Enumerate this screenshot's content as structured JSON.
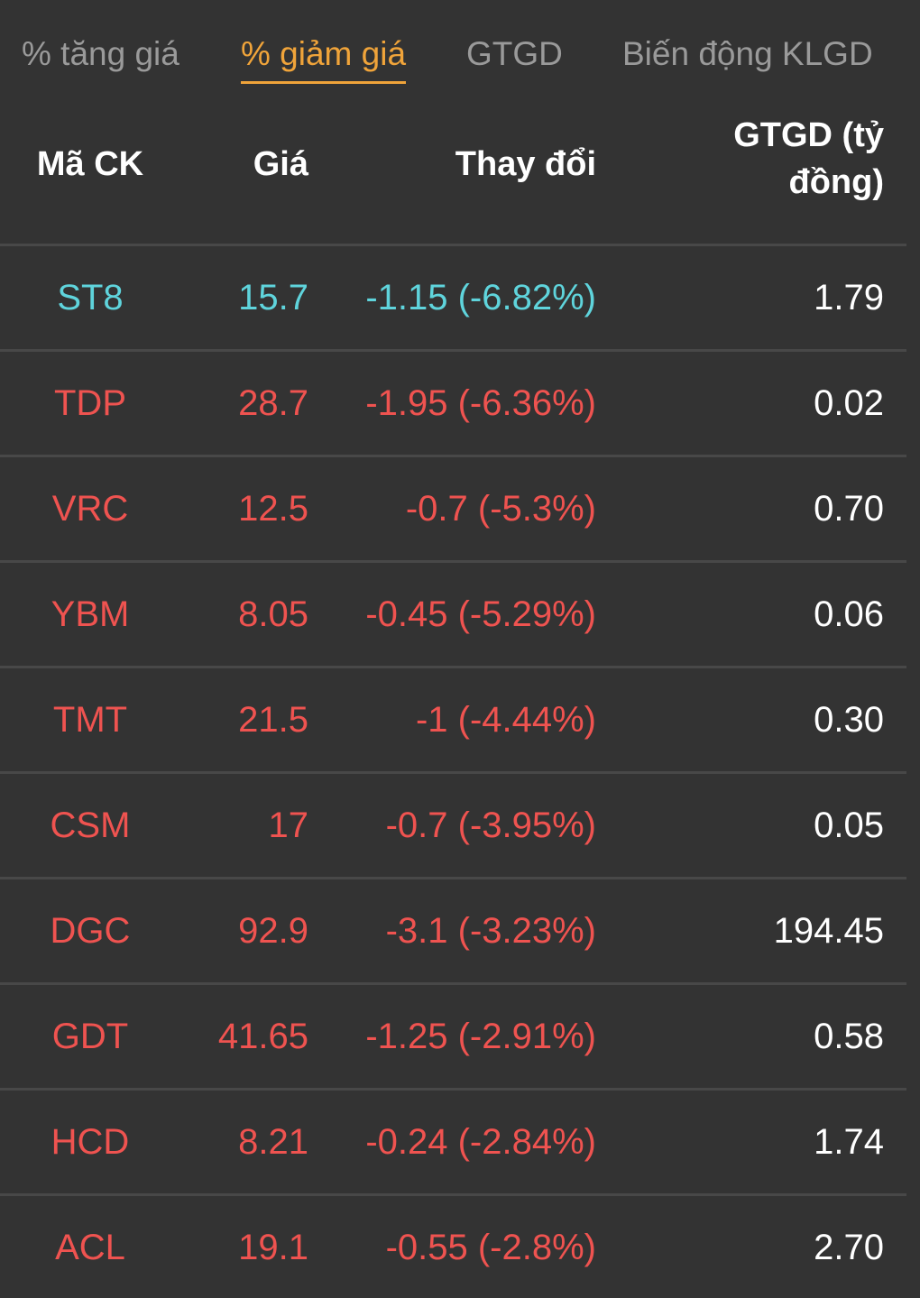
{
  "tabs": [
    {
      "label": "% tăng giá",
      "active": false
    },
    {
      "label": "% giảm giá",
      "active": true
    },
    {
      "label": "GTGD",
      "active": false
    },
    {
      "label": "Biến động KLGD",
      "active": false
    }
  ],
  "colors": {
    "background": "#333333",
    "active_tab": "#f0a43a",
    "inactive_tab": "#9a9a9a",
    "down": "#ef5350",
    "floor": "#5fd4dc",
    "value": "#ffffff",
    "divider": "#484848"
  },
  "table": {
    "headers": {
      "code": "Mã CK",
      "price": "Giá",
      "change": "Thay đổi",
      "value_line1": "GTGD (tỷ",
      "value_line2": "đồng)"
    },
    "rows": [
      {
        "code": "ST8",
        "price": "15.7",
        "change": "-1.15 (-6.82%)",
        "value": "1.79",
        "status": "floor"
      },
      {
        "code": "TDP",
        "price": "28.7",
        "change": "-1.95 (-6.36%)",
        "value": "0.02",
        "status": "down"
      },
      {
        "code": "VRC",
        "price": "12.5",
        "change": "-0.7 (-5.3%)",
        "value": "0.70",
        "status": "down"
      },
      {
        "code": "YBM",
        "price": "8.05",
        "change": "-0.45 (-5.29%)",
        "value": "0.06",
        "status": "down"
      },
      {
        "code": "TMT",
        "price": "21.5",
        "change": "-1 (-4.44%)",
        "value": "0.30",
        "status": "down"
      },
      {
        "code": "CSM",
        "price": "17",
        "change": "-0.7 (-3.95%)",
        "value": "0.05",
        "status": "down"
      },
      {
        "code": "DGC",
        "price": "92.9",
        "change": "-3.1 (-3.23%)",
        "value": "194.45",
        "status": "down"
      },
      {
        "code": "GDT",
        "price": "41.65",
        "change": "-1.25 (-2.91%)",
        "value": "0.58",
        "status": "down"
      },
      {
        "code": "HCD",
        "price": "8.21",
        "change": "-0.24 (-2.84%)",
        "value": "1.74",
        "status": "down"
      },
      {
        "code": "ACL",
        "price": "19.1",
        "change": "-0.55 (-2.8%)",
        "value": "2.70",
        "status": "down"
      }
    ]
  }
}
